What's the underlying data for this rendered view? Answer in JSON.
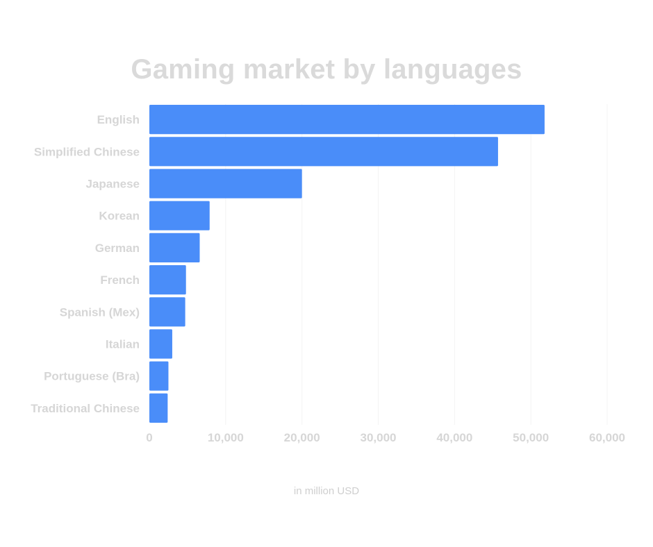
{
  "chart_data": {
    "type": "bar",
    "orientation": "horizontal",
    "title": "Gaming market by languages",
    "xlabel": "in million USD",
    "ylabel": "",
    "categories": [
      "English",
      "Simplified Chinese",
      "Japanese",
      "Korean",
      "German",
      "French",
      "Spanish (Mex)",
      "Italian",
      "Portuguese (Bra)",
      "Traditional Chinese"
    ],
    "values": [
      51800,
      45700,
      20000,
      7900,
      6600,
      4800,
      4700,
      3000,
      2500,
      2400
    ],
    "xlim": [
      0,
      60000
    ],
    "xticks": [
      0,
      10000,
      20000,
      30000,
      40000,
      50000,
      60000
    ],
    "xtick_labels": [
      "0",
      "10,000",
      "20,000",
      "30,000",
      "40,000",
      "50,000",
      "60,000"
    ],
    "grid": "vertical",
    "legend": "none",
    "colors": {
      "bar": "#4a8df9",
      "title": "#dadada",
      "labels": "#d6d6d6",
      "grid": "#f3f3f3"
    }
  }
}
